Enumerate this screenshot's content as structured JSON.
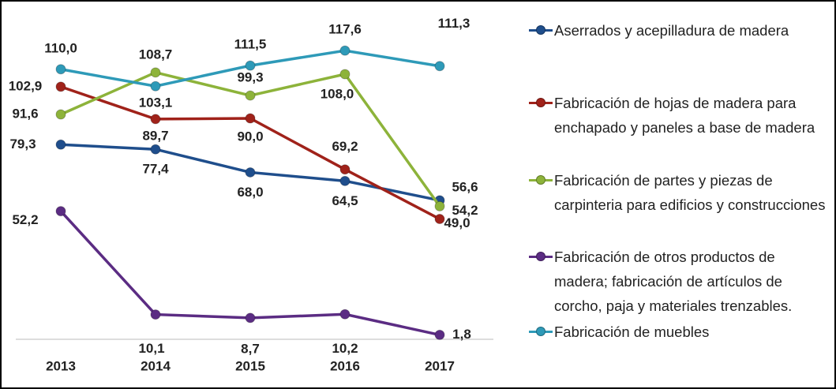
{
  "chart_data": {
    "type": "line",
    "categories": [
      "2013",
      "2014",
      "2015",
      "2016",
      "2017"
    ],
    "ylim": [
      0,
      135
    ],
    "series": [
      {
        "name": "Aserrados y acepilladura de madera",
        "color": "#1f4e8c",
        "values": [
          79.3,
          77.4,
          68.0,
          64.5,
          56.6
        ],
        "value_labels": [
          "79,3",
          "77,4",
          "68,0",
          "64,5",
          "56,6"
        ]
      },
      {
        "name": "Fabricación de hojas de madera para enchapado y paneles a base de madera",
        "color": "#a0221a",
        "values": [
          102.9,
          89.7,
          90.0,
          69.2,
          49.0
        ],
        "value_labels": [
          "102,9",
          "89,7",
          "90,0",
          "69,2",
          "49,0"
        ]
      },
      {
        "name": "Fabricación de partes y piezas de carpinteria para edificios y construcciones",
        "color": "#8db33a",
        "values": [
          91.6,
          108.7,
          99.3,
          108.0,
          54.2
        ],
        "value_labels": [
          "91,6",
          "108,7",
          "99,3",
          "108,0",
          "54,2"
        ]
      },
      {
        "name": "Fabricación de otros productos de madera; fabricación de artículos de corcho, paja y materiales trenzables.",
        "color": "#5b2c83",
        "values": [
          52.2,
          10.1,
          8.7,
          10.2,
          1.8
        ],
        "value_labels": [
          "52,2",
          "10,1",
          "8,7",
          "10,2",
          "1,8"
        ]
      },
      {
        "name": "Fabricación de muebles",
        "color": "#2e9ab8",
        "values": [
          110.0,
          103.1,
          111.5,
          117.6,
          111.3
        ],
        "value_labels": [
          "110,0",
          "103,1",
          "111,5",
          "117,6",
          "111,3"
        ]
      }
    ]
  }
}
